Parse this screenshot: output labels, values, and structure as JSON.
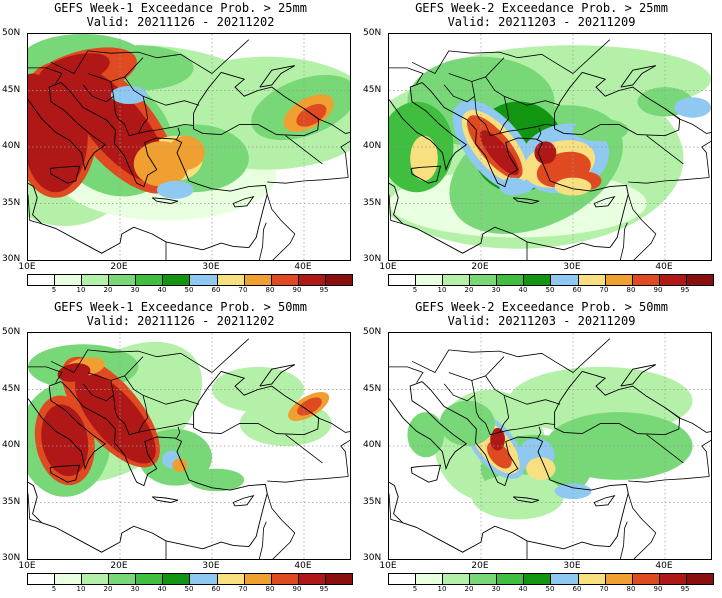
{
  "panels": [
    {
      "title": "GEFS Week-1 Exceedance Prob. > 25mm",
      "valid": "Valid: 20211126 - 20211202"
    },
    {
      "title": "GEFS Week-2 Exceedance Prob. > 25mm",
      "valid": "Valid: 20211203 - 20211209"
    },
    {
      "title": "GEFS Week-1 Exceedance Prob. > 50mm",
      "valid": "Valid: 20211126 - 20211202"
    },
    {
      "title": "GEFS Week-2 Exceedance Prob. > 50mm",
      "valid": "Valid: 20211203 - 20211209"
    }
  ],
  "lat_labels": [
    "50N",
    "45N",
    "40N",
    "35N",
    "30N"
  ],
  "lon_labels": [
    "10E",
    "20E",
    "30E",
    "40E"
  ],
  "colorbar": {
    "labels": [
      "5",
      "10",
      "20",
      "30",
      "40",
      "50",
      "60",
      "70",
      "80",
      "90",
      "95"
    ],
    "colors": [
      "#ffffff",
      "#e8ffe0",
      "#b4f0a8",
      "#78d878",
      "#3fbe3f",
      "#129612",
      "#8fc8f0",
      "#f8e080",
      "#f0a030",
      "#e04a20",
      "#b01818",
      "#8a1010"
    ]
  },
  "map_colors": {
    "land": "#ffffff",
    "border": "#000000",
    "grid": "#999999"
  }
}
